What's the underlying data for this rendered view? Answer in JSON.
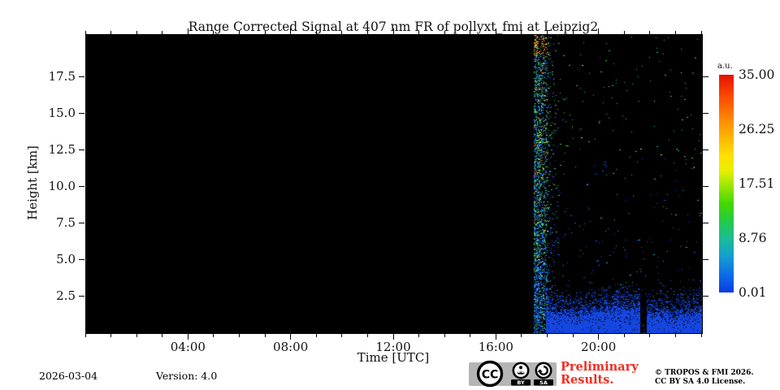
{
  "chart_data": {
    "type": "heatmap",
    "title": "Range Corrected Signal at 407 nm FR of pollyxt_fmi at Leipzig2",
    "xlabel": "Time [UTC]",
    "ylabel": "Height [km]",
    "xlim_hours": [
      0,
      24
    ],
    "x_major_hours": [
      4,
      8,
      12,
      16,
      20
    ],
    "x_major_tick_labels": [
      "04:00",
      "08:00",
      "12:00",
      "16:00",
      "20:00"
    ],
    "x_minor_interval_hours": 1,
    "ylim_km": [
      0,
      20.4
    ],
    "y_tick_values": [
      2.5,
      5.0,
      7.5,
      10.0,
      12.5,
      15.0,
      17.5
    ],
    "y_tick_labels": [
      "2.5",
      "5.0",
      "7.5",
      "10.0",
      "12.5",
      "15.0",
      "17.5"
    ],
    "grid": false,
    "background_color": "#000000",
    "colorbar": {
      "label": "a.u.",
      "tick_labels": [
        "35.00",
        "26.25",
        "17.51",
        "8.76",
        "0.01"
      ],
      "tick_values": [
        35.0,
        26.25,
        17.51,
        8.76,
        0.01
      ],
      "colormap": "jet",
      "position": "right"
    },
    "signal": {
      "description": "No data (black) from 00:00 until ~17:27 UTC. Measurement starts ~17:27 with a dense multicolored startup-noise column over the full height range, followed by sparse photon noise speckles (green/cyan aloft, blue lower) and a strong solid blue near-surface signal band below ~1.6 km lasting until 24:00, interrupted by a short black data gap near 21:45 UTC.",
      "measurement_start_hour": 17.45,
      "measurement_end_hour": 24,
      "startup_column_width_hours": 0.28,
      "near_surface_band_top_km": 1.6,
      "band_color": "#1546e0",
      "data_gap_hour": 21.72,
      "data_gap_width_hours": 0.2,
      "data_gap_max_km": 3.1,
      "noise_palette": {
        "blue": "#1a55e8",
        "cyan": "#24b8c0",
        "green": "#3ecc55",
        "yellow": "#e2e431",
        "orange": "#ff8c1a",
        "red": "#ff2d10"
      },
      "seed": 1337
    }
  },
  "footer": {
    "date": "2026-03-04",
    "version": "Version: 4.0",
    "preliminary_line1": "Preliminary",
    "preliminary_line2": "Results.",
    "preliminary_color": "#ee2e22",
    "copyright_line1": "© TROPOS & FMI 2026.",
    "copyright_line2": "CC BY SA 4.0 License.",
    "cc_badge": {
      "cc": "CC",
      "by": "BY",
      "sa": "SA",
      "background": "#b5b5b5"
    }
  }
}
